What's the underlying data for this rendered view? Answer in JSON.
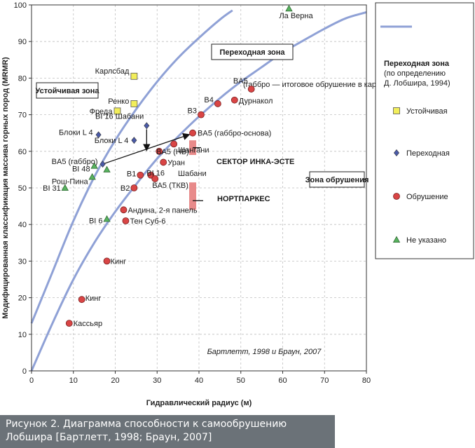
{
  "chart_data": {
    "type": "scatter",
    "title": "",
    "xlabel": "Гидравлический радиус (м)",
    "ylabel": "Модифицированная классификация массива горных пород (MRMR)",
    "xlim": [
      0,
      80
    ],
    "ylim": [
      0,
      100
    ],
    "xticks": [
      0,
      10,
      20,
      30,
      40,
      50,
      60,
      70,
      80
    ],
    "yticks": [
      0,
      10,
      20,
      30,
      40,
      50,
      60,
      70,
      80,
      90,
      100
    ],
    "grid": true,
    "transition_curves": {
      "name": "Переходная зона",
      "lower": [
        [
          0,
          0
        ],
        [
          5,
          13
        ],
        [
          10,
          25
        ],
        [
          15,
          35
        ],
        [
          20,
          43.5
        ],
        [
          25,
          51
        ],
        [
          30,
          58
        ],
        [
          35,
          64
        ],
        [
          40,
          69.5
        ],
        [
          45,
          74.5
        ],
        [
          50,
          79
        ],
        [
          55,
          83
        ],
        [
          60,
          87
        ],
        [
          65,
          90.3
        ],
        [
          70,
          93.5
        ],
        [
          75,
          96.3
        ],
        [
          80,
          98
        ]
      ],
      "upper": [
        [
          0,
          13
        ],
        [
          5,
          27
        ],
        [
          10,
          41
        ],
        [
          15,
          53
        ],
        [
          20,
          63
        ],
        [
          25,
          71.5
        ],
        [
          30,
          79
        ],
        [
          35,
          85.5
        ],
        [
          40,
          91
        ],
        [
          45,
          96
        ],
        [
          48,
          98.5
        ]
      ]
    },
    "series": [
      {
        "name": "Устойчивая",
        "color": "#f2ee5a",
        "marker": "square",
        "points": [
          {
            "x": 24.5,
            "y": 80.5,
            "label": "Карлсбад"
          },
          {
            "x": 24.5,
            "y": 73,
            "label": "Ренко"
          },
          {
            "x": 20.5,
            "y": 71,
            "label": "Фреда"
          }
        ]
      },
      {
        "name": "Переходная",
        "color": "#4a5aa8",
        "marker": "diamond",
        "points": [
          {
            "x": 16,
            "y": 64.5,
            "label": "Блоки L 4"
          },
          {
            "x": 24.5,
            "y": 63,
            "label": "Блоки L 4"
          },
          {
            "x": 27.5,
            "y": 67,
            "label": "BI 16 Шабани"
          },
          {
            "x": 17,
            "y": 56.5,
            "label": "BA5 (габбро)"
          }
        ]
      },
      {
        "name": "Обрушение",
        "color": "#d94545",
        "marker": "circle",
        "points": [
          {
            "x": 52.5,
            "y": 77,
            "label": "BA5"
          },
          {
            "x": 48.5,
            "y": 74,
            "label": "Дурнакол"
          },
          {
            "x": 44.5,
            "y": 73,
            "label": "B4"
          },
          {
            "x": 40.5,
            "y": 70,
            "label": "B3"
          },
          {
            "x": 38.5,
            "y": 65,
            "label": "BA5 (габбро-основа)"
          },
          {
            "x": 34,
            "y": 62,
            "label": "Шангани"
          },
          {
            "x": 30.5,
            "y": 60,
            "label": "BA5 (НВ)"
          },
          {
            "x": 31.5,
            "y": 57,
            "label": "Уран"
          },
          {
            "x": 26,
            "y": 53.5,
            "label": "B1"
          },
          {
            "x": 28.5,
            "y": 53.5,
            "label": "BI 16"
          },
          {
            "x": 29.5,
            "y": 52.5,
            "label": "BA5 (ТКВ)"
          },
          {
            "x": 24.5,
            "y": 50,
            "label": "B2"
          },
          {
            "x": 22,
            "y": 44,
            "label": "Андина, 2-я панель"
          },
          {
            "x": 22.5,
            "y": 41,
            "label": "Тен Суб-6"
          },
          {
            "x": 18,
            "y": 30,
            "label": "Кинг"
          },
          {
            "x": 12,
            "y": 19.5,
            "label": "Кинг"
          },
          {
            "x": 9,
            "y": 13,
            "label": "Кассьяр"
          }
        ]
      },
      {
        "name": "Не указано",
        "color": "#58b35f",
        "marker": "triangle",
        "points": [
          {
            "x": 61.5,
            "y": 99,
            "label": "Ла Верна"
          },
          {
            "x": 18,
            "y": 55,
            "label": ""
          },
          {
            "x": 15,
            "y": 56,
            "label": "BI 48"
          },
          {
            "x": 14.5,
            "y": 53,
            "label": "Рош-Пина"
          },
          {
            "x": 8,
            "y": 50,
            "label": "BI 31"
          },
          {
            "x": 18,
            "y": 41.5,
            "label": "BI 6"
          }
        ]
      }
    ],
    "annotations": {
      "stable_zone": "Устойчивая зона",
      "transition_zone": "Переходная зона",
      "caving_zone": "Зона обрушения",
      "ba5_note": "(габбро — итоговое обрушение в карьер)",
      "shabani": "Шабани",
      "sector_label": "СЕКТОР ИНКА-ЭСТЕ",
      "nortparkes_label": "НОРТПАРКЕС",
      "source": "Бартлетт, 1998 и Браун, 2007"
    },
    "sector_range": {
      "x": 38.5,
      "y": [
        59,
        63
      ]
    },
    "nortparkes_range": {
      "x": 38.5,
      "y": [
        44,
        51.5
      ]
    },
    "legend": {
      "placement": "right",
      "line_label": [
        "Переходная зона",
        "(по определению",
        "Д. Лобшира, 1994)"
      ]
    }
  },
  "caption": {
    "line1": "Рисунок 2. Диаграмма способности к самообрушению",
    "line2": "Лобшира [Бартлетт, 1998; Браун, 2007]"
  },
  "colors": {
    "curve": "#8fa1d6",
    "stable": "#f2ee5a",
    "transition": "#4a5aa8",
    "caving": "#d94545",
    "unspecified": "#58b35f",
    "range_bar": "#e88a8a",
    "caption_bg": "#6b7278"
  }
}
